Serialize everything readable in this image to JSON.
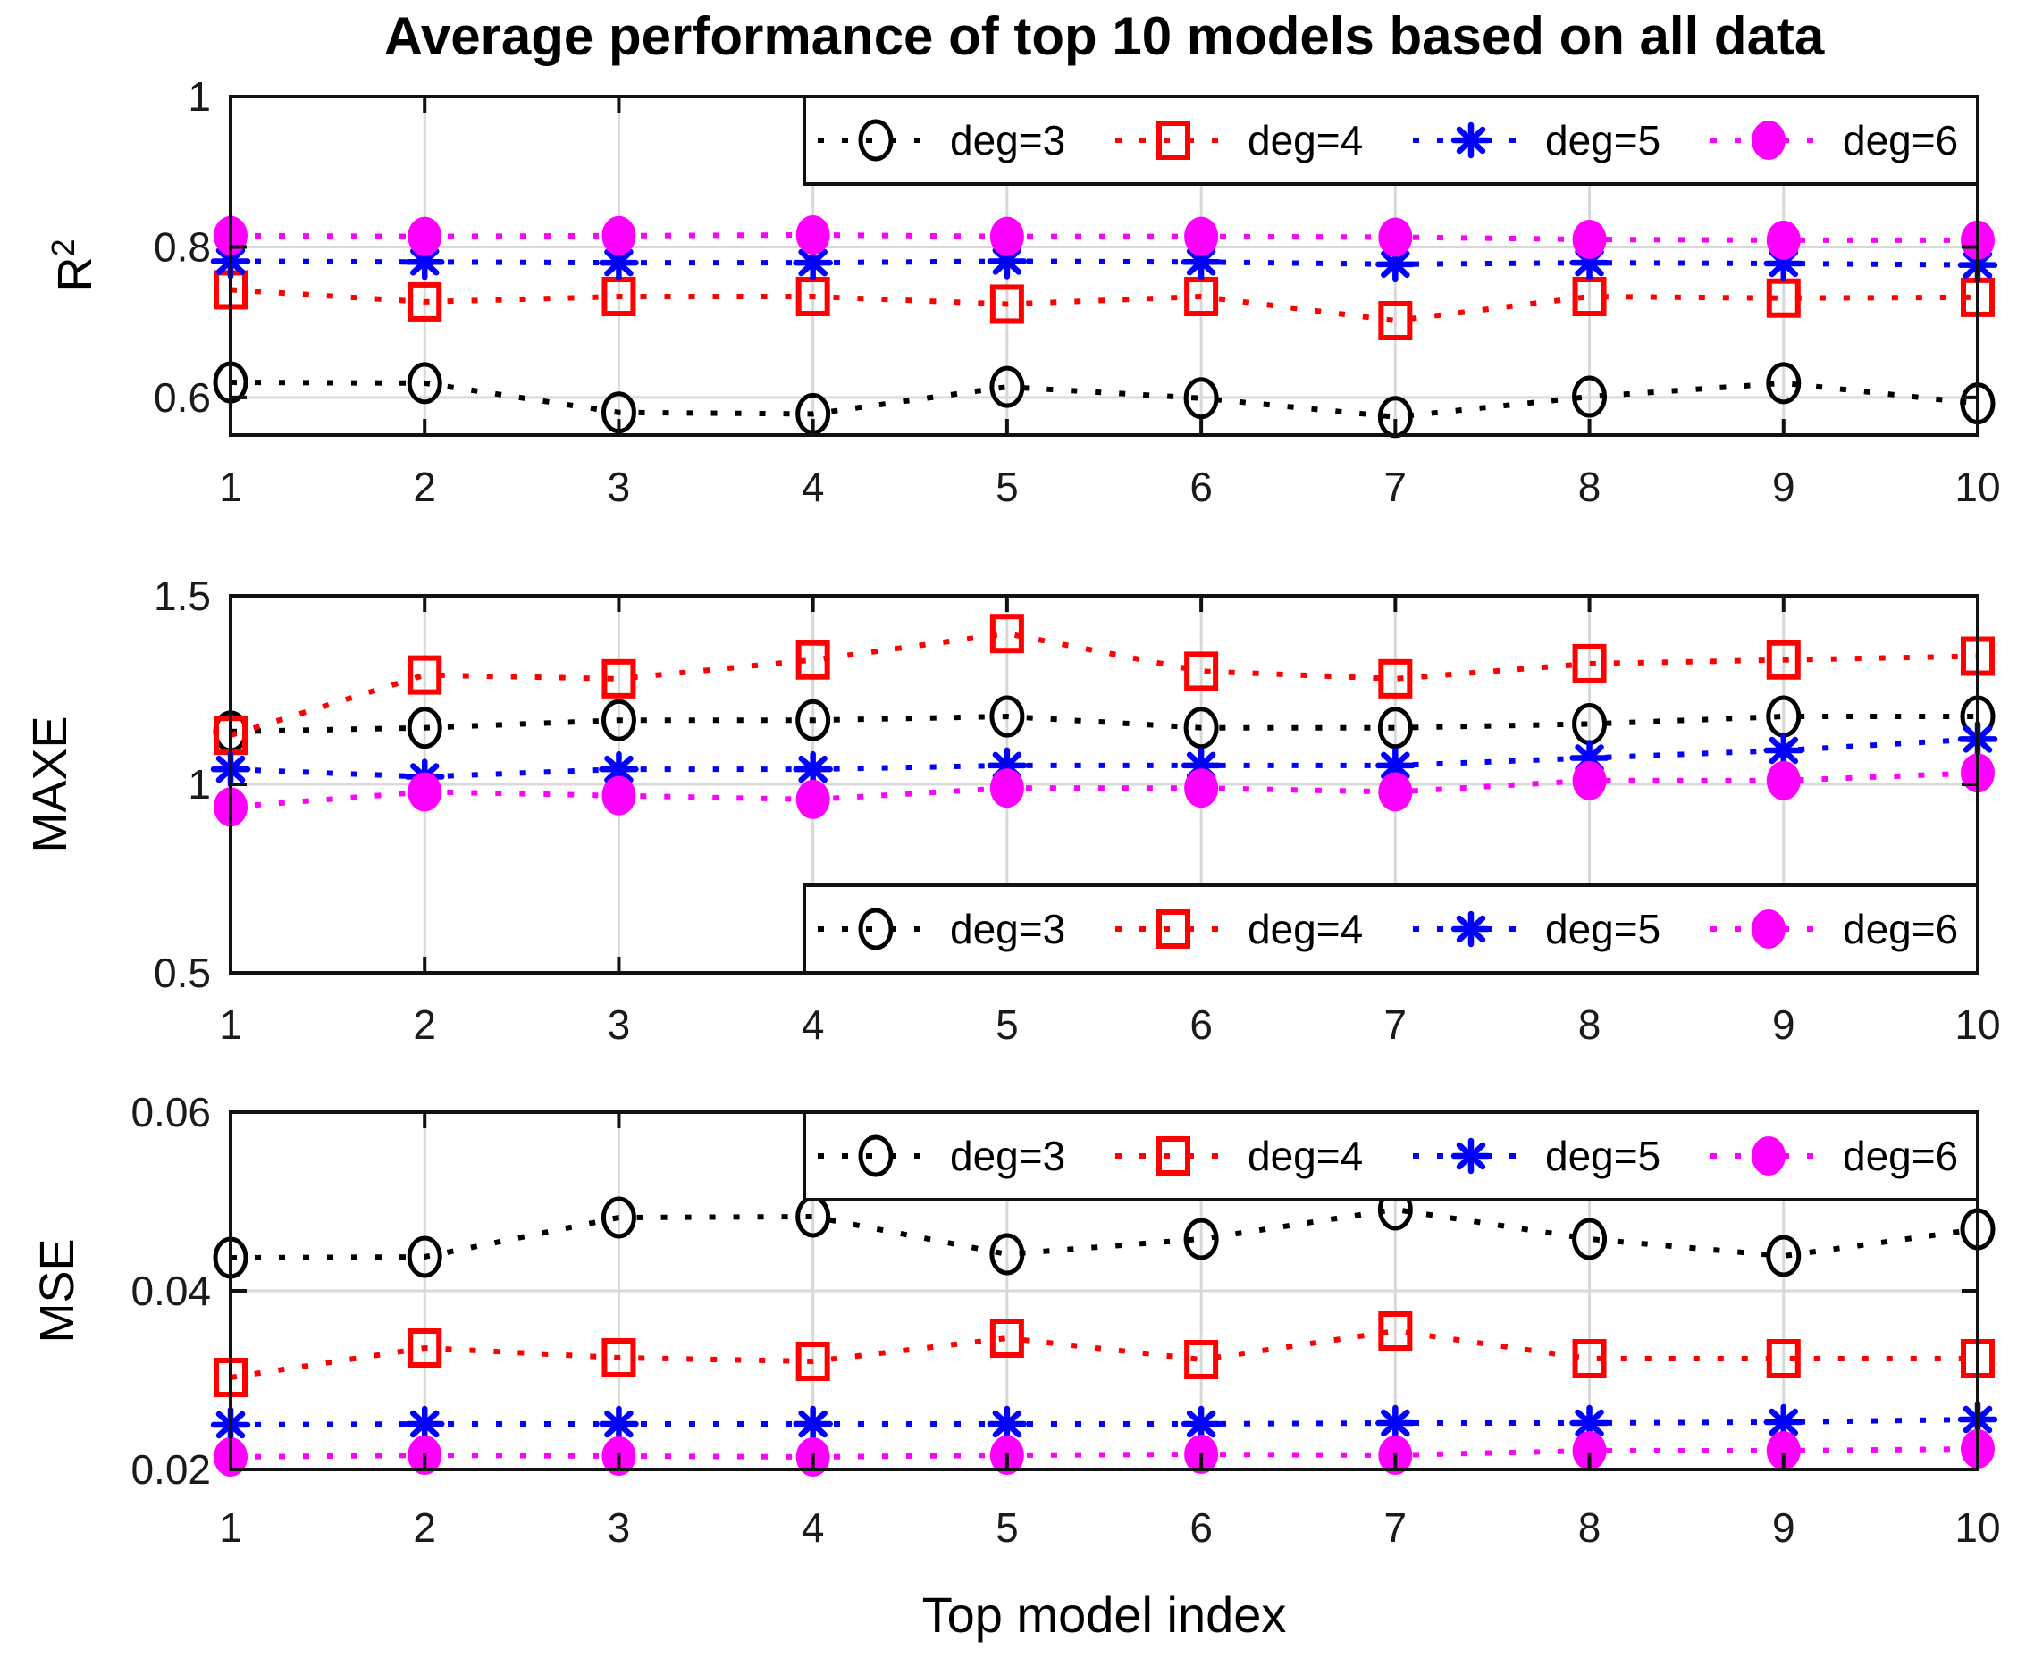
{
  "figure": {
    "title": "Average performance of top 10 models based on all data",
    "xlabel": "Top model index",
    "background": "#ffffff",
    "frame_color": "#111111",
    "grid_color": "#d9d9d9",
    "tick_label_color": "#1a1a1a"
  },
  "legend": {
    "labels": [
      "deg=3",
      "deg=4",
      "deg=5",
      "deg=6"
    ]
  },
  "chart_data": [
    {
      "type": "line",
      "panel": "r2",
      "linestyle": "dotted",
      "grid": true,
      "legend_position": "northeast-inside",
      "ylabel": "R",
      "ylabel_sup": "2",
      "ylim": [
        0.55,
        1.0
      ],
      "yticks": [
        0.6,
        0.8,
        1.0
      ],
      "ytick_labels": [
        "0.6",
        "0.8",
        "1"
      ],
      "x": [
        1,
        2,
        3,
        4,
        5,
        6,
        7,
        8,
        9,
        10
      ],
      "xtick_labels": [
        "1",
        "2",
        "3",
        "4",
        "5",
        "6",
        "7",
        "8",
        "9",
        "10"
      ],
      "series": [
        {
          "name": "deg=3",
          "color": "#000000",
          "marker": "circle-open",
          "values": [
            0.62,
            0.619,
            0.58,
            0.578,
            0.614,
            0.599,
            0.574,
            0.601,
            0.619,
            0.592
          ]
        },
        {
          "name": "deg=4",
          "color": "#ff0000",
          "marker": "square-open",
          "values": [
            0.743,
            0.727,
            0.734,
            0.734,
            0.724,
            0.734,
            0.702,
            0.734,
            0.732,
            0.733
          ]
        },
        {
          "name": "deg=5",
          "color": "#0000ff",
          "marker": "asterisk",
          "values": [
            0.781,
            0.78,
            0.779,
            0.779,
            0.781,
            0.78,
            0.777,
            0.779,
            0.778,
            0.776
          ]
        },
        {
          "name": "deg=6",
          "color": "#ff00ff",
          "marker": "circle-filled",
          "values": [
            0.815,
            0.814,
            0.815,
            0.816,
            0.814,
            0.814,
            0.813,
            0.81,
            0.809,
            0.809
          ]
        }
      ]
    },
    {
      "type": "line",
      "panel": "maxe",
      "linestyle": "dotted",
      "grid": true,
      "legend_position": "southeast-inside",
      "ylabel": "MAXE",
      "ylabel_sup": "",
      "ylim": [
        0.5,
        1.5
      ],
      "yticks": [
        0.5,
        1.0,
        1.5
      ],
      "ytick_labels": [
        "0.5",
        "1",
        "1.5"
      ],
      "x": [
        1,
        2,
        3,
        4,
        5,
        6,
        7,
        8,
        9,
        10
      ],
      "xtick_labels": [
        "1",
        "2",
        "3",
        "4",
        "5",
        "6",
        "7",
        "8",
        "9",
        "10"
      ],
      "series": [
        {
          "name": "deg=3",
          "color": "#000000",
          "marker": "circle-open",
          "values": [
            1.14,
            1.15,
            1.17,
            1.17,
            1.18,
            1.15,
            1.15,
            1.16,
            1.18,
            1.18
          ]
        },
        {
          "name": "deg=4",
          "color": "#ff0000",
          "marker": "square-open",
          "values": [
            1.13,
            1.29,
            1.28,
            1.33,
            1.4,
            1.3,
            1.28,
            1.32,
            1.33,
            1.34
          ]
        },
        {
          "name": "deg=5",
          "color": "#0000ff",
          "marker": "asterisk",
          "values": [
            1.04,
            1.02,
            1.04,
            1.04,
            1.05,
            1.05,
            1.05,
            1.07,
            1.09,
            1.12
          ]
        },
        {
          "name": "deg=6",
          "color": "#ff00ff",
          "marker": "circle-filled",
          "values": [
            0.94,
            0.98,
            0.97,
            0.96,
            0.99,
            0.99,
            0.98,
            1.01,
            1.01,
            1.03
          ]
        }
      ]
    },
    {
      "type": "line",
      "panel": "mse",
      "linestyle": "dotted",
      "grid": true,
      "legend_position": "northeast-inside",
      "ylabel": "MSE",
      "ylabel_sup": "",
      "ylim": [
        0.02,
        0.06
      ],
      "yticks": [
        0.02,
        0.04,
        0.06
      ],
      "ytick_labels": [
        "0.02",
        "0.04",
        "0.06"
      ],
      "x": [
        1,
        2,
        3,
        4,
        5,
        6,
        7,
        8,
        9,
        10
      ],
      "xtick_labels": [
        "1",
        "2",
        "3",
        "4",
        "5",
        "6",
        "7",
        "8",
        "9",
        "10"
      ],
      "series": [
        {
          "name": "deg=3",
          "color": "#000000",
          "marker": "circle-open",
          "values": [
            0.0437,
            0.0438,
            0.0482,
            0.0483,
            0.0441,
            0.0458,
            0.0491,
            0.0458,
            0.0439,
            0.0469
          ]
        },
        {
          "name": "deg=4",
          "color": "#ff0000",
          "marker": "square-open",
          "values": [
            0.0303,
            0.0336,
            0.0325,
            0.0321,
            0.0347,
            0.0323,
            0.0355,
            0.0324,
            0.0324,
            0.0324
          ]
        },
        {
          "name": "deg=5",
          "color": "#0000ff",
          "marker": "asterisk",
          "values": [
            0.025,
            0.0251,
            0.0251,
            0.0251,
            0.0251,
            0.0251,
            0.0252,
            0.0252,
            0.0253,
            0.0256
          ]
        },
        {
          "name": "deg=6",
          "color": "#ff00ff",
          "marker": "circle-filled",
          "values": [
            0.0214,
            0.0216,
            0.0215,
            0.0214,
            0.0216,
            0.0217,
            0.0216,
            0.0221,
            0.0221,
            0.0223
          ]
        }
      ]
    }
  ]
}
